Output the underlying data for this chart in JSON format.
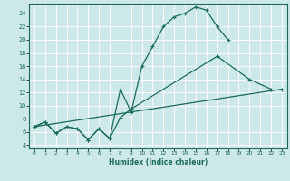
{
  "xlabel": "Humidex (Indice chaleur)",
  "bg_color": "#cce8e8",
  "grid_color": "#ffffff",
  "line_color": "#1a6b5a",
  "xlim": [
    -0.5,
    23.5
  ],
  "ylim": [
    3.5,
    25.5
  ],
  "xticks": [
    0,
    1,
    2,
    3,
    4,
    5,
    6,
    7,
    8,
    9,
    10,
    11,
    12,
    13,
    14,
    15,
    16,
    17,
    18,
    19,
    20,
    21,
    22,
    23
  ],
  "yticks": [
    4,
    6,
    8,
    10,
    12,
    14,
    16,
    18,
    20,
    22,
    24
  ],
  "curve1_x": [
    0,
    1,
    2,
    3,
    4,
    5,
    6,
    7,
    8,
    9,
    10,
    11,
    12,
    13,
    14,
    15,
    16,
    17,
    18
  ],
  "curve1_y": [
    6.8,
    7.5,
    5.8,
    6.8,
    6.5,
    4.8,
    6.5,
    5.0,
    12.5,
    9.0,
    16.0,
    19.0,
    22.0,
    23.5,
    24.0,
    25.0,
    24.5,
    22.0,
    20.0
  ],
  "curve2_x": [
    0,
    1,
    2,
    3,
    4,
    5,
    6,
    7,
    8,
    9,
    17,
    20,
    22
  ],
  "curve2_y": [
    6.8,
    7.5,
    5.8,
    6.8,
    6.5,
    4.8,
    6.5,
    5.0,
    8.2,
    9.5,
    17.5,
    14.0,
    12.5
  ],
  "curve3_x": [
    0,
    23
  ],
  "curve3_y": [
    6.8,
    12.5
  ]
}
